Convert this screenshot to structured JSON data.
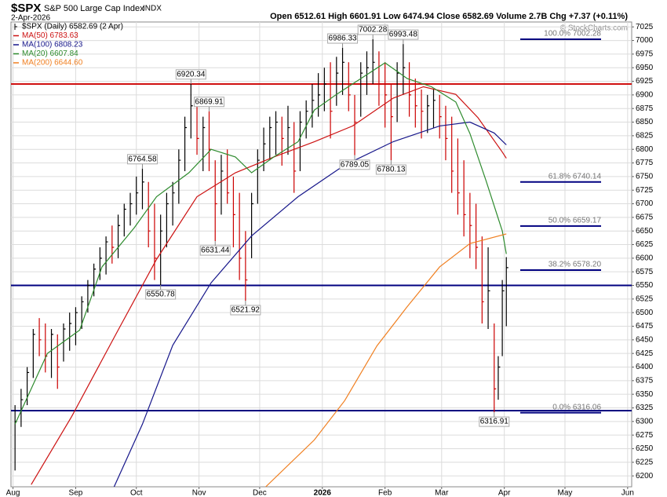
{
  "chart_data": {
    "type": "ohlc",
    "symbol": "$SPX",
    "title": "S&P 500 Large Cap Index",
    "exchange": "INDX",
    "date": "2-Apr-2026",
    "quote": "Open 6512.61  High 6601.91  Low 6474.94  Close 6582.69  Volume 2.7B  Chg +7.37 (+0.11%)",
    "watermark": "© StockCharts.com",
    "xlim": [
      -1,
      306
    ],
    "xticks": [
      {
        "value": 0,
        "label": "Aug"
      },
      {
        "value": 31,
        "label": "Sep"
      },
      {
        "value": 61,
        "label": "Oct"
      },
      {
        "value": 92,
        "label": "Nov"
      },
      {
        "value": 122,
        "label": "Dec"
      },
      {
        "value": 153,
        "label": "2026"
      },
      {
        "value": 184,
        "label": "Feb"
      },
      {
        "value": 212,
        "label": "Mar"
      },
      {
        "value": 243,
        "label": "Apr"
      },
      {
        "value": 273,
        "label": "May"
      },
      {
        "value": 304,
        "label": "Jun"
      }
    ],
    "ylim": [
      6180,
      7034
    ],
    "yticks": [
      6200,
      6225,
      6250,
      6275,
      6300,
      6325,
      6350,
      6375,
      6400,
      6425,
      6450,
      6475,
      6500,
      6525,
      6550,
      6575,
      6600,
      6625,
      6650,
      6675,
      6700,
      6725,
      6750,
      6775,
      6800,
      6825,
      6850,
      6875,
      6900,
      6925,
      6950,
      6975,
      7000,
      7025
    ],
    "grid": true,
    "series": [
      {
        "name": "$SPX (Daily) 6582.69 (2 Apr)",
        "type": "ohlc",
        "color": "#000000",
        "down_color": "#cc0000",
        "x": [
          1,
          4,
          7,
          10,
          13,
          16,
          19,
          22,
          25,
          28,
          31,
          34,
          37,
          40,
          43,
          46,
          49,
          52,
          55,
          58,
          61,
          64,
          67,
          70,
          73,
          76,
          79,
          82,
          85,
          88,
          91,
          94,
          97,
          100,
          103,
          106,
          109,
          112,
          115,
          118,
          121,
          124,
          127,
          130,
          133,
          136,
          139,
          142,
          145,
          148,
          151,
          154,
          157,
          160,
          163,
          166,
          169,
          172,
          175,
          178,
          181,
          184,
          187,
          190,
          193,
          196,
          199,
          202,
          205,
          208,
          211,
          214,
          217,
          220,
          223,
          226,
          229,
          232,
          235,
          238,
          240,
          242,
          244
        ],
        "high": [
          6330,
          6360,
          6400,
          6470,
          6490,
          6480,
          6470,
          6460,
          6480,
          6500,
          6510,
          6530,
          6560,
          6590,
          6620,
          6640,
          6660,
          6680,
          6700,
          6720,
          6750,
          6764.58,
          6740,
          6700,
          6680,
          6720,
          6740,
          6800,
          6860,
          6920.34,
          6880,
          6860,
          6869.91,
          6780,
          6790,
          6800,
          6750,
          6720,
          6650,
          6720,
          6800,
          6840,
          6860,
          6870,
          6860,
          6880,
          6850,
          6870,
          6890,
          6920,
          6940,
          6950,
          6960,
          6970,
          6986.33,
          6960,
          6900,
          6960,
          6980,
          7002.28,
          6980,
          6960,
          6920,
          6960,
          6993.48,
          6960,
          6930,
          6910,
          6900,
          6910,
          6900,
          6880,
          6860,
          6820,
          6780,
          6720,
          6700,
          6640,
          6620,
          6480,
          6420,
          6560,
          6601.91
        ],
        "low": [
          6210,
          6290,
          6330,
          6380,
          6420,
          6390,
          6380,
          6360,
          6410,
          6430,
          6440,
          6470,
          6500,
          6530,
          6560,
          6570,
          6590,
          6600,
          6640,
          6660,
          6680,
          6690,
          6620,
          6560,
          6550.78,
          6620,
          6660,
          6700,
          6760,
          6820,
          6790,
          6760,
          6760,
          6631.44,
          6680,
          6700,
          6620,
          6560,
          6521.92,
          6600,
          6700,
          6760,
          6780,
          6790,
          6770,
          6790,
          6720,
          6760,
          6820,
          6840,
          6860,
          6870,
          6820,
          6880,
          6900,
          6870,
          6789.05,
          6860,
          6900,
          6920,
          6880,
          6840,
          6780.13,
          6850,
          6900,
          6860,
          6840,
          6820,
          6830,
          6840,
          6820,
          6780,
          6720,
          6680,
          6640,
          6600,
          6580,
          6480,
          6470,
          6316.91,
          6340,
          6420,
          6474.94
        ],
        "close": [
          6300,
          6340,
          6390,
          6460,
          6450,
          6420,
          6460,
          6400,
          6470,
          6480,
          6500,
          6520,
          6550,
          6580,
          6600,
          6630,
          6620,
          6660,
          6690,
          6700,
          6720,
          6740,
          6650,
          6600,
          6650,
          6700,
          6720,
          6780,
          6840,
          6880,
          6820,
          6840,
          6800,
          6700,
          6760,
          6720,
          6680,
          6600,
          6560,
          6700,
          6780,
          6810,
          6840,
          6850,
          6820,
          6840,
          6760,
          6850,
          6870,
          6890,
          6900,
          6920,
          6870,
          6940,
          6960,
          6900,
          6850,
          6940,
          6950,
          6960,
          6920,
          6900,
          6860,
          6940,
          6950,
          6900,
          6880,
          6870,
          6880,
          6890,
          6860,
          6820,
          6760,
          6720,
          6680,
          6660,
          6620,
          6520,
          6540,
          6360,
          6400,
          6540,
          6582.69
        ]
      },
      {
        "name": "MA(50) 6783.63",
        "type": "line",
        "color": "#cc1111",
        "x": [
          9,
          29,
          52,
          71,
          91,
          110,
          129,
          149,
          168,
          188,
          203,
          219,
          230,
          242,
          244
        ],
        "values": [
          6184,
          6309,
          6468,
          6598,
          6713,
          6757,
          6786,
          6814,
          6843,
          6894,
          6915,
          6901,
          6858,
          6795,
          6783.63
        ]
      },
      {
        "name": "MA(100) 6808.23",
        "type": "line",
        "color": "#16168a",
        "x": [
          50,
          64,
          79,
          98,
          118,
          141,
          164,
          188,
          211,
          226,
          238,
          244
        ],
        "values": [
          6180,
          6295,
          6440,
          6555,
          6641,
          6713,
          6771,
          6814,
          6843,
          6850,
          6830,
          6808.23
        ]
      },
      {
        "name": "MA(20) 6607.84",
        "type": "line",
        "color": "#2e8b2e",
        "x": [
          1,
          17,
          33,
          44,
          60,
          71,
          87,
          98,
          110,
          118,
          129,
          141,
          149,
          160,
          172,
          184,
          195,
          207,
          219,
          226,
          234,
          242,
          244
        ],
        "values": [
          6295,
          6425,
          6468,
          6584,
          6656,
          6713,
          6757,
          6800,
          6786,
          6757,
          6786,
          6814,
          6872,
          6901,
          6930,
          6959,
          6930,
          6915,
          6887,
          6829,
          6742,
          6650,
          6607.84
        ]
      },
      {
        "name": "MA(200) 6644.60",
        "type": "line",
        "color": "#f07f20",
        "x": [
          125,
          149,
          164,
          180,
          195,
          211,
          226,
          244
        ],
        "values": [
          6180,
          6266,
          6338,
          6439,
          6511,
          6584,
          6627,
          6644.6
        ]
      }
    ],
    "annotations": [
      {
        "x": 64,
        "value": 6764.58
      },
      {
        "x": 73,
        "value": 6550.78
      },
      {
        "x": 88,
        "value": 6920.34
      },
      {
        "x": 97,
        "value": 6869.91
      },
      {
        "x": 100,
        "value": 6631.44
      },
      {
        "x": 115,
        "value": 6521.92
      },
      {
        "x": 163,
        "value": 6986.33
      },
      {
        "x": 169,
        "value": 6789.05
      },
      {
        "x": 178,
        "value": 7002.28
      },
      {
        "x": 187,
        "value": 6780.13
      },
      {
        "x": 193,
        "value": 6993.48
      },
      {
        "x": 238,
        "value": 6316.91
      }
    ],
    "hlines": [
      {
        "value": 6920,
        "color": "#d01010"
      },
      {
        "value": 6550,
        "color": "#000080"
      },
      {
        "value": 6320,
        "color": "#000080"
      }
    ],
    "fib_levels": [
      {
        "value": 7002.28,
        "label": "100.0% 7002.28"
      },
      {
        "value": 6740.14,
        "label": "61.8% 6740.14"
      },
      {
        "value": 6659.17,
        "label": "50.0% 6659.17"
      },
      {
        "value": 6578.2,
        "label": "38.2% 6578.20"
      },
      {
        "value": 6316.06,
        "label": "0.0% 6316.06"
      }
    ]
  }
}
